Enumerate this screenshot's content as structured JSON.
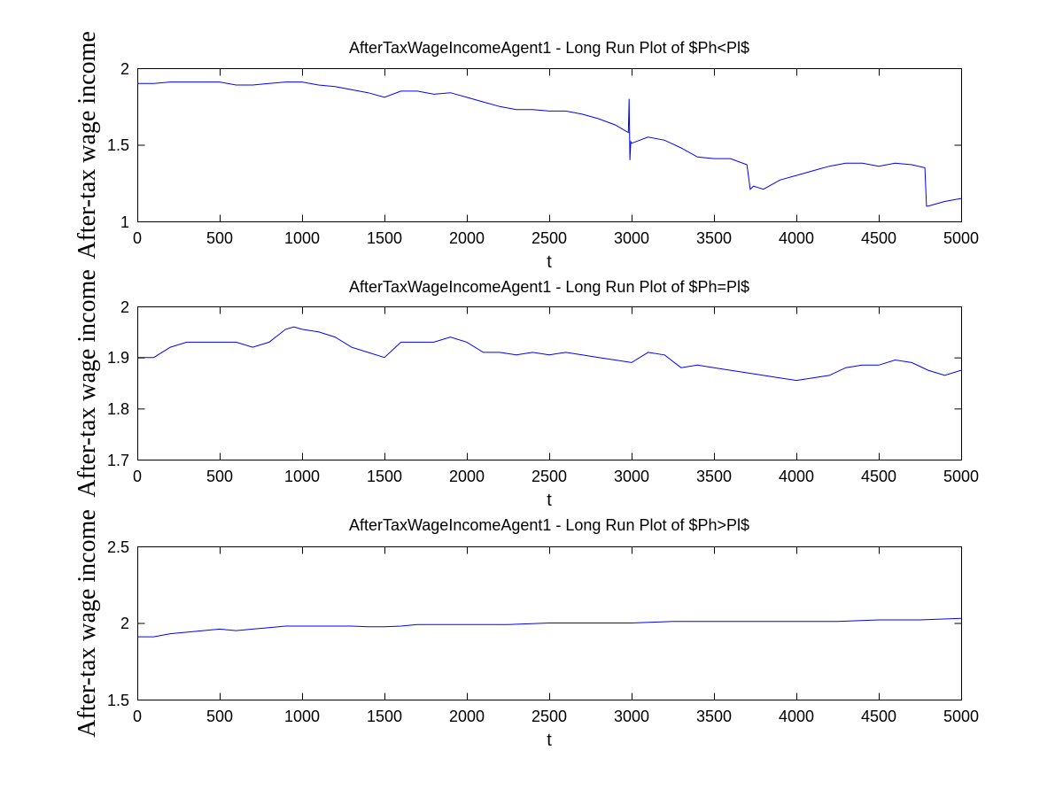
{
  "figure": {
    "background": "#ffffff"
  },
  "chart_data": [
    {
      "type": "line",
      "title": "AfterTaxWageIncomeAgent1 - Long Run Plot of $Ph<Pl$",
      "xlabel": "t",
      "ylabel": "After-tax wage income",
      "xlim": [
        0,
        5000
      ],
      "ylim": [
        1,
        2
      ],
      "xticks": [
        "0",
        "500",
        "1000",
        "1500",
        "2000",
        "2500",
        "3000",
        "3500",
        "4000",
        "4500",
        "5000"
      ],
      "yticks": [
        "1",
        "1.5",
        "2"
      ],
      "grid": false,
      "series": [
        {
          "color": "#0000ff",
          "x": [
            0,
            100,
            200,
            300,
            400,
            500,
            600,
            700,
            800,
            900,
            950,
            1000,
            1100,
            1200,
            1300,
            1400,
            1500,
            1600,
            1700,
            1800,
            1900,
            2000,
            2100,
            2200,
            2300,
            2400,
            2500,
            2600,
            2700,
            2800,
            2900,
            2980,
            2985,
            2990,
            2995,
            3000,
            3100,
            3200,
            3300,
            3400,
            3500,
            3600,
            3700,
            3720,
            3740,
            3800,
            3900,
            4000,
            4100,
            4200,
            4300,
            4400,
            4500,
            4600,
            4700,
            4780,
            4790,
            4800,
            4900,
            5000
          ],
          "y": [
            1.9,
            1.9,
            1.91,
            1.91,
            1.91,
            1.91,
            1.89,
            1.89,
            1.9,
            1.91,
            1.91,
            1.91,
            1.89,
            1.88,
            1.86,
            1.84,
            1.81,
            1.85,
            1.85,
            1.83,
            1.84,
            1.81,
            1.78,
            1.75,
            1.73,
            1.73,
            1.72,
            1.72,
            1.7,
            1.67,
            1.63,
            1.58,
            1.8,
            1.4,
            1.52,
            1.51,
            1.55,
            1.53,
            1.48,
            1.42,
            1.41,
            1.41,
            1.37,
            1.21,
            1.23,
            1.21,
            1.27,
            1.3,
            1.33,
            1.36,
            1.38,
            1.38,
            1.36,
            1.38,
            1.37,
            1.35,
            1.1,
            1.1,
            1.13,
            1.15
          ]
        }
      ]
    },
    {
      "type": "line",
      "title": "AfterTaxWageIncomeAgent1 - Long Run Plot of $Ph=Pl$",
      "xlabel": "t",
      "ylabel": "After-tax wage income",
      "xlim": [
        0,
        5000
      ],
      "ylim": [
        1.7,
        2
      ],
      "xticks": [
        "0",
        "500",
        "1000",
        "1500",
        "2000",
        "2500",
        "3000",
        "3500",
        "4000",
        "4500",
        "5000"
      ],
      "yticks": [
        "1.7",
        "1.8",
        "1.9",
        "2"
      ],
      "grid": false,
      "series": [
        {
          "color": "#0000ff",
          "x": [
            0,
            100,
            200,
            300,
            400,
            500,
            600,
            700,
            800,
            900,
            950,
            1000,
            1100,
            1200,
            1300,
            1400,
            1500,
            1600,
            1700,
            1800,
            1900,
            2000,
            2100,
            2200,
            2300,
            2400,
            2500,
            2600,
            2700,
            2800,
            2900,
            3000,
            3100,
            3200,
            3300,
            3400,
            3500,
            3600,
            3700,
            3800,
            3900,
            4000,
            4100,
            4200,
            4300,
            4400,
            4500,
            4600,
            4700,
            4800,
            4900,
            5000
          ],
          "y": [
            1.9,
            1.9,
            1.92,
            1.93,
            1.93,
            1.93,
            1.93,
            1.92,
            1.93,
            1.955,
            1.96,
            1.955,
            1.95,
            1.94,
            1.92,
            1.91,
            1.9,
            1.93,
            1.93,
            1.93,
            1.94,
            1.93,
            1.91,
            1.91,
            1.905,
            1.91,
            1.905,
            1.91,
            1.905,
            1.9,
            1.895,
            1.89,
            1.91,
            1.905,
            1.88,
            1.885,
            1.88,
            1.875,
            1.87,
            1.865,
            1.86,
            1.855,
            1.86,
            1.865,
            1.88,
            1.885,
            1.885,
            1.895,
            1.89,
            1.875,
            1.865,
            1.875
          ]
        }
      ]
    },
    {
      "type": "line",
      "title": "AfterTaxWageIncomeAgent1 - Long Run Plot of $Ph>Pl$",
      "xlabel": "t",
      "ylabel": "After-tax wage income",
      "xlim": [
        0,
        5000
      ],
      "ylim": [
        1.5,
        2.5
      ],
      "xticks": [
        "0",
        "500",
        "1000",
        "1500",
        "2000",
        "2500",
        "3000",
        "3500",
        "4000",
        "4500",
        "5000"
      ],
      "yticks": [
        "1.5",
        "2",
        "2.5"
      ],
      "grid": false,
      "series": [
        {
          "color": "#0000ff",
          "x": [
            0,
            100,
            200,
            300,
            400,
            500,
            600,
            700,
            800,
            900,
            1000,
            1100,
            1200,
            1300,
            1400,
            1500,
            1600,
            1700,
            1800,
            1900,
            2000,
            2250,
            2500,
            2750,
            3000,
            3250,
            3500,
            3750,
            4000,
            4250,
            4500,
            4750,
            5000
          ],
          "y": [
            1.91,
            1.91,
            1.93,
            1.94,
            1.95,
            1.96,
            1.95,
            1.96,
            1.97,
            1.98,
            1.98,
            1.98,
            1.98,
            1.98,
            1.975,
            1.975,
            1.98,
            1.99,
            1.99,
            1.99,
            1.99,
            1.99,
            2.0,
            2.0,
            2.0,
            2.01,
            2.01,
            2.01,
            2.01,
            2.01,
            2.02,
            2.02,
            2.03
          ]
        }
      ]
    }
  ]
}
